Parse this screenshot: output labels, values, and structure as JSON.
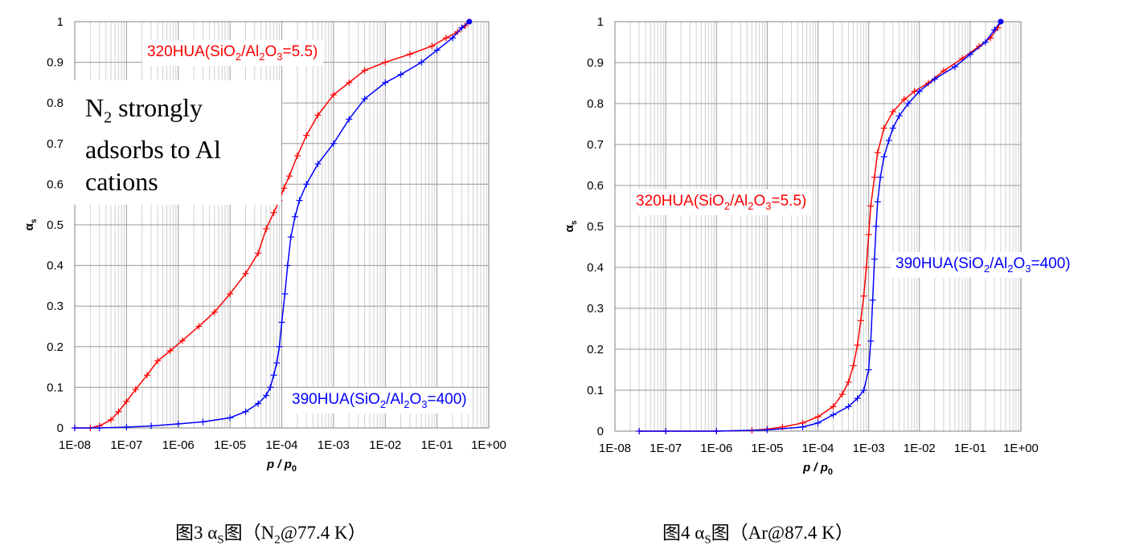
{
  "chart_data": [
    {
      "type": "line",
      "x_scale": "log",
      "xlim": [
        1e-08,
        1
      ],
      "ylim": [
        0,
        1
      ],
      "xlabel": "p / p0",
      "ylabel": "αs",
      "x_ticks": [
        "1E-08",
        "1E-07",
        "1E-06",
        "1E-05",
        "1E-04",
        "1E-03",
        "1E-02",
        "1E-01",
        "1E+00"
      ],
      "y_ticks": [
        "0",
        "0.1",
        "0.2",
        "0.3",
        "0.4",
        "0.5",
        "0.6",
        "0.7",
        "0.8",
        "0.9",
        "1"
      ],
      "grid": true,
      "annotation": "N2 strongly adsorbs to Al cations",
      "series": [
        {
          "name": "320HUA(SiO2/Al2O3=5.5)",
          "color": "#ff0000",
          "x": [
            1e-08,
            2e-08,
            3e-08,
            5e-08,
            7e-08,
            1e-07,
            1.5e-07,
            2.5e-07,
            4e-07,
            7e-07,
            1.2e-06,
            2.5e-06,
            5e-06,
            1e-05,
            2e-05,
            3.5e-05,
            5e-05,
            7e-05,
            9e-05,
            0.00011,
            0.00014,
            0.0002,
            0.0003,
            0.0005,
            0.001,
            0.002,
            0.004,
            0.01,
            0.03,
            0.08,
            0.15,
            0.25,
            0.35,
            0.42
          ],
          "y": [
            0.0,
            0.0,
            0.005,
            0.02,
            0.04,
            0.065,
            0.095,
            0.13,
            0.165,
            0.19,
            0.215,
            0.25,
            0.285,
            0.33,
            0.38,
            0.43,
            0.49,
            0.53,
            0.56,
            0.59,
            0.62,
            0.67,
            0.72,
            0.77,
            0.82,
            0.85,
            0.88,
            0.9,
            0.92,
            0.94,
            0.96,
            0.975,
            0.99,
            1.0
          ]
        },
        {
          "name": "390HUA(SiO2/Al2O3=400)",
          "color": "#0000ff",
          "x": [
            1e-08,
            3e-08,
            1e-07,
            3e-07,
            1e-06,
            3e-06,
            1e-05,
            2e-05,
            3.5e-05,
            5e-05,
            6e-05,
            7e-05,
            8e-05,
            9e-05,
            0.0001,
            0.000115,
            0.00013,
            0.00015,
            0.00018,
            0.00022,
            0.0003,
            0.0005,
            0.001,
            0.002,
            0.004,
            0.01,
            0.02,
            0.05,
            0.1,
            0.2,
            0.3,
            0.42
          ],
          "y": [
            0.0,
            0.0,
            0.002,
            0.005,
            0.01,
            0.015,
            0.025,
            0.04,
            0.06,
            0.08,
            0.1,
            0.13,
            0.16,
            0.2,
            0.26,
            0.33,
            0.4,
            0.47,
            0.52,
            0.56,
            0.6,
            0.65,
            0.7,
            0.76,
            0.81,
            0.85,
            0.87,
            0.9,
            0.93,
            0.96,
            0.985,
            1.0
          ]
        }
      ]
    },
    {
      "type": "line",
      "x_scale": "log",
      "xlim": [
        1e-08,
        1
      ],
      "ylim": [
        0,
        1
      ],
      "xlabel": "p / p0",
      "ylabel": "αs",
      "x_ticks": [
        "1E-08",
        "1E-07",
        "1E-06",
        "1E-05",
        "1E-04",
        "1E-03",
        "1E-02",
        "1E-01",
        "1E+00"
      ],
      "y_ticks": [
        "0",
        "0.1",
        "0.2",
        "0.3",
        "0.4",
        "0.5",
        "0.6",
        "0.7",
        "0.8",
        "0.9",
        "1"
      ],
      "grid": true,
      "series": [
        {
          "name": "320HUA(SiO2/Al2O3=5.5)",
          "color": "#ff0000",
          "x": [
            3e-08,
            1e-07,
            1e-06,
            5e-06,
            1e-05,
            2e-05,
            5e-05,
            0.0001,
            0.0002,
            0.0003,
            0.0004,
            0.0005,
            0.0006,
            0.0007,
            0.0008,
            0.0009,
            0.001,
            0.0011,
            0.0013,
            0.0015,
            0.002,
            0.003,
            0.005,
            0.008,
            0.015,
            0.03,
            0.07,
            0.15,
            0.25,
            0.35,
            0.4
          ],
          "y": [
            0.0,
            0.0,
            0.0,
            0.002,
            0.005,
            0.01,
            0.02,
            0.035,
            0.06,
            0.09,
            0.12,
            0.16,
            0.21,
            0.27,
            0.33,
            0.4,
            0.48,
            0.55,
            0.62,
            0.68,
            0.74,
            0.78,
            0.81,
            0.83,
            0.85,
            0.88,
            0.91,
            0.94,
            0.96,
            0.985,
            1.0
          ]
        },
        {
          "name": "390HUA(SiO2/Al2O3=400)",
          "color": "#0000ff",
          "x": [
            3e-08,
            1e-07,
            1e-06,
            1e-05,
            5e-05,
            0.0001,
            0.0002,
            0.0004,
            0.0006,
            0.0008,
            0.001,
            0.0011,
            0.0012,
            0.0013,
            0.0014,
            0.0015,
            0.0017,
            0.002,
            0.0025,
            0.003,
            0.004,
            0.006,
            0.01,
            0.02,
            0.05,
            0.1,
            0.2,
            0.3,
            0.4
          ],
          "y": [
            0.0,
            0.0,
            0.0,
            0.003,
            0.01,
            0.02,
            0.04,
            0.06,
            0.08,
            0.1,
            0.15,
            0.22,
            0.32,
            0.42,
            0.5,
            0.56,
            0.62,
            0.67,
            0.71,
            0.74,
            0.77,
            0.8,
            0.83,
            0.86,
            0.89,
            0.92,
            0.95,
            0.98,
            1.0
          ]
        }
      ]
    }
  ],
  "labels": {
    "chart1": {
      "red": {
        "prefix": "320HUA(SiO",
        "sub1": "2",
        "mid": "/Al",
        "sub2": "2",
        "mid2": "O",
        "sub3": "3",
        "suffix": "=5.5)"
      },
      "blue": {
        "prefix": "390HUA(SiO",
        "sub1": "2",
        "mid": "/Al",
        "sub2": "2",
        "mid2": "O",
        "sub3": "3",
        "suffix": "=400)"
      }
    },
    "chart2": {
      "red": {
        "prefix": "320HUA(SiO",
        "sub1": "2",
        "mid": "/Al",
        "sub2": "2",
        "mid2": "O",
        "sub3": "3",
        "suffix": "=5.5)"
      },
      "blue": {
        "prefix": "390HUA(SiO",
        "sub1": "2",
        "mid": "/Al",
        "sub2": "2",
        "mid2": "O",
        "sub3": "3",
        "suffix": "=400)"
      }
    }
  },
  "annotation": {
    "line1_a": "N",
    "line1_sub": "2",
    "line1_b": " strongly",
    "line2": "adsorbs to Al",
    "line3": "cations"
  },
  "captions": {
    "fig3": {
      "a": "图3 α",
      "sub": "S",
      "b": "图（N",
      "sub2": "2",
      "c": "@77.4 K）"
    },
    "fig4": {
      "a": "图4 α",
      "sub": "S",
      "b": "图（Ar@87.4 K）"
    }
  }
}
